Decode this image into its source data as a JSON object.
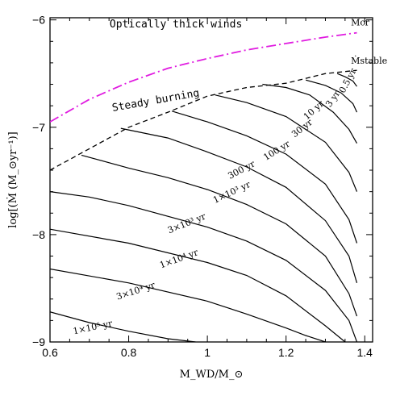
{
  "chart_data": {
    "type": "line",
    "title": "",
    "xlabel": "M_WD/M_⊙",
    "ylabel": "log[(Ṁ (M_⊙yr⁻¹)]",
    "xlim": [
      0.6,
      1.42
    ],
    "ylim": [
      -9,
      -5.98
    ],
    "xticks": [
      0.6,
      0.8,
      1.0,
      1.2,
      1.4
    ],
    "xtick_labels": [
      "0.6",
      "0.8",
      "1",
      "1.2",
      "1.4"
    ],
    "yticks": [
      -9,
      -8,
      -7,
      -6
    ],
    "ytick_labels": [
      "−9",
      "−8",
      "−7",
      "−6"
    ],
    "grid": false,
    "regions": [
      {
        "label": "Optically thick winds",
        "x": 0.92,
        "y": -6.07
      },
      {
        "label": "Steady burning",
        "x": 0.87,
        "y": -6.78
      }
    ],
    "boundary_lines": [
      {
        "name": "Ṁ_cr",
        "label": "Ṁcr",
        "style": "dash-dot",
        "color": "#e01be0",
        "x": [
          0.6,
          0.7,
          0.8,
          0.9,
          1.0,
          1.1,
          1.2,
          1.3,
          1.38
        ],
        "y": [
          -6.95,
          -6.74,
          -6.58,
          -6.45,
          -6.36,
          -6.28,
          -6.22,
          -6.16,
          -6.12
        ],
        "label_pos": {
          "x": 1.365,
          "y": -6.05
        }
      },
      {
        "name": "Ṁ_stable",
        "label": "Ṁstable",
        "style": "dashed",
        "color": "#000000",
        "x": [
          0.6,
          0.7,
          0.8,
          0.9,
          1.0,
          1.1,
          1.2,
          1.3,
          1.38
        ],
        "y": [
          -7.4,
          -7.2,
          -7.0,
          -6.86,
          -6.71,
          -6.63,
          -6.59,
          -6.5,
          -6.47
        ],
        "label_pos": {
          "x": 1.365,
          "y": -6.41
        }
      }
    ],
    "series": [
      {
        "label": "1×10⁵ yr",
        "x": [
          0.6,
          0.7,
          0.8,
          0.9,
          0.97
        ],
        "y": [
          -8.72,
          -8.82,
          -8.9,
          -8.97,
          -9.0
        ],
        "label_pos": {
          "x": 0.71,
          "y": -8.89
        },
        "label_angle": -12
      },
      {
        "label": "3×10⁴ yr",
        "x": [
          0.6,
          0.8,
          1.0,
          1.1,
          1.2,
          1.25,
          1.3
        ],
        "y": [
          -8.32,
          -8.45,
          -8.62,
          -8.74,
          -8.87,
          -8.94,
          -9.0
        ],
        "label_pos": {
          "x": 0.82,
          "y": -8.55
        },
        "label_angle": -18
      },
      {
        "label": "1×10⁴ yr",
        "x": [
          0.6,
          0.8,
          1.0,
          1.1,
          1.2,
          1.3,
          1.35
        ],
        "y": [
          -7.95,
          -8.08,
          -8.26,
          -8.38,
          -8.57,
          -8.85,
          -9.0
        ],
        "label_pos": {
          "x": 0.93,
          "y": -8.25
        },
        "label_angle": -20
      },
      {
        "label": "3×10³ yr",
        "x": [
          0.6,
          0.7,
          0.8,
          1.0,
          1.1,
          1.2,
          1.3,
          1.36,
          1.38
        ],
        "y": [
          -7.6,
          -7.65,
          -7.73,
          -7.93,
          -8.06,
          -8.24,
          -8.52,
          -8.8,
          -9.0
        ],
        "label_pos": {
          "x": 0.95,
          "y": -7.92
        },
        "label_angle": -22
      },
      {
        "label": "1×10³ yr",
        "x": [
          0.68,
          0.8,
          0.9,
          1.0,
          1.1,
          1.2,
          1.3,
          1.36,
          1.38
        ],
        "y": [
          -7.26,
          -7.38,
          -7.47,
          -7.58,
          -7.72,
          -7.9,
          -8.2,
          -8.55,
          -8.76
        ],
        "label_pos": {
          "x": 1.065,
          "y": -7.63
        },
        "label_angle": -25
      },
      {
        "label": "300 yr",
        "x": [
          0.78,
          0.9,
          1.0,
          1.1,
          1.2,
          1.3,
          1.36,
          1.38
        ],
        "y": [
          -7.01,
          -7.1,
          -7.23,
          -7.37,
          -7.56,
          -7.87,
          -8.2,
          -8.45
        ],
        "label_pos": {
          "x": 1.09,
          "y": -7.42
        },
        "label_angle": -28
      },
      {
        "label": "100 yr",
        "x": [
          0.91,
          1.0,
          1.1,
          1.2,
          1.3,
          1.36,
          1.38
        ],
        "y": [
          -6.85,
          -6.95,
          -7.08,
          -7.25,
          -7.53,
          -7.86,
          -8.08
        ],
        "label_pos": {
          "x": 1.18,
          "y": -7.24
        },
        "label_angle": -32
      },
      {
        "label": "30 yr",
        "x": [
          1.02,
          1.1,
          1.2,
          1.3,
          1.36,
          1.38
        ],
        "y": [
          -6.7,
          -6.77,
          -6.9,
          -7.14,
          -7.42,
          -7.6
        ],
        "label_pos": {
          "x": 1.245,
          "y": -7.03
        },
        "label_angle": -38
      },
      {
        "label": "10 yr",
        "x": [
          1.14,
          1.2,
          1.26,
          1.32,
          1.36,
          1.38
        ],
        "y": [
          -6.6,
          -6.63,
          -6.7,
          -6.86,
          -7.02,
          -7.15
        ],
        "label_pos": {
          "x": 1.275,
          "y": -6.86
        },
        "label_angle": -42
      },
      {
        "label": "3 yr",
        "x": [
          1.25,
          1.3,
          1.34,
          1.37,
          1.38
        ],
        "y": [
          -6.56,
          -6.61,
          -6.68,
          -6.78,
          -6.86
        ],
        "label_pos": {
          "x": 1.325,
          "y": -6.75
        },
        "label_angle": -55
      },
      {
        "label": "0.5 yr",
        "x": [
          1.33,
          1.35,
          1.37,
          1.38
        ],
        "y": [
          -6.5,
          -6.53,
          -6.57,
          -6.62
        ],
        "label_pos": {
          "x": 1.363,
          "y": -6.58
        },
        "label_angle": -62
      }
    ]
  }
}
